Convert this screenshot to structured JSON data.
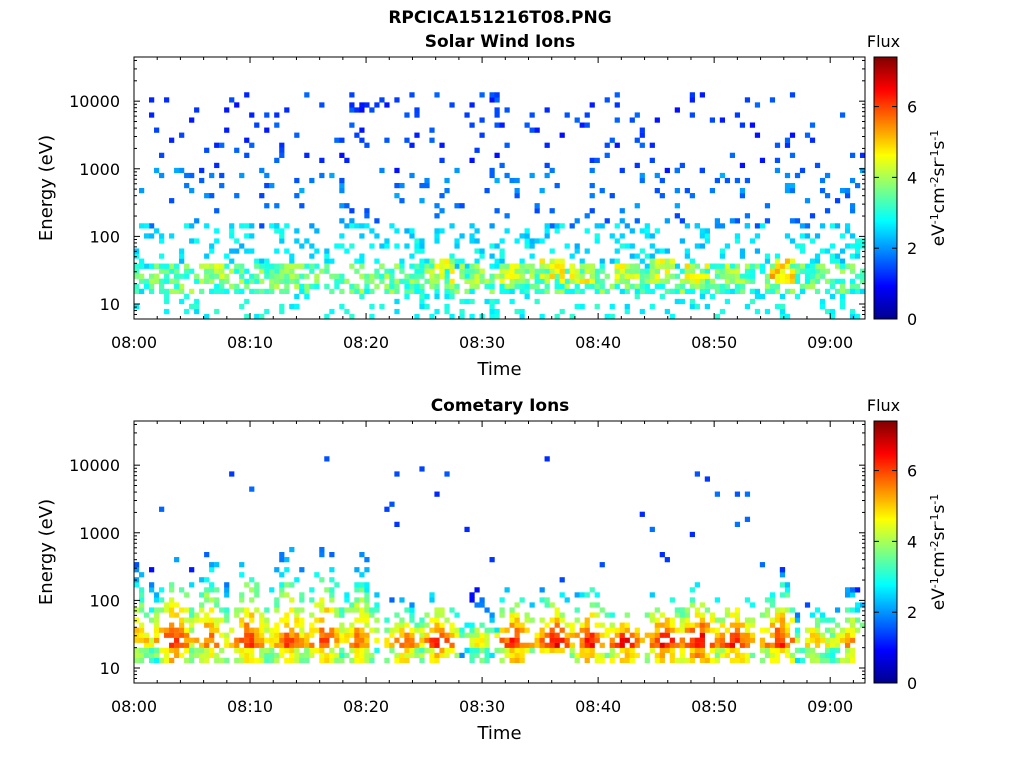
{
  "figure": {
    "title": "RPCICA151216T08.PNG",
    "colors": {
      "colormap": [
        "#00008f",
        "#0000ff",
        "#0080ff",
        "#00ffff",
        "#80ff80",
        "#ffff00",
        "#ff8000",
        "#ff0000",
        "#800000"
      ],
      "axis": "#000000",
      "background": "#ffffff"
    }
  },
  "chart_data": [
    {
      "type": "heatmap",
      "title": "Solar Wind Ions",
      "xlabel": "Time",
      "ylabel": "Energy (eV)",
      "x_range": [
        "08:00",
        "09:03"
      ],
      "x_ticks": [
        "08:00",
        "08:10",
        "08:20",
        "08:30",
        "08:40",
        "08:50",
        "09:00"
      ],
      "y_scale": "log",
      "y_range": [
        6,
        45000
      ],
      "y_ticks": [
        "10",
        "100",
        "1000",
        "10000"
      ],
      "grid": false,
      "colorbar": {
        "label": "Flux",
        "unit": "eV-1cm-2sr-1s-1",
        "range": [
          0,
          7.4
        ],
        "ticks": [
          "0",
          "2",
          "4",
          "6"
        ],
        "colormap": "jet"
      },
      "bands": [
        {
          "energy_range": [
            1000,
            12000
          ],
          "flux_range": [
            1.0,
            1.7
          ],
          "density": 0.07,
          "note": "sparse scattered counts"
        },
        {
          "energy_range": [
            150,
            1000
          ],
          "flux_range": [
            1.4,
            2.2
          ],
          "density": 0.09,
          "note": "sparse scattered counts"
        },
        {
          "energy_range": [
            35,
            150
          ],
          "flux_range": [
            2.2,
            3.0
          ],
          "density": 0.22
        },
        {
          "energy_range": [
            15,
            35
          ],
          "flux_range": [
            2.8,
            4.2
          ],
          "density": 0.55
        },
        {
          "energy_range": [
            6,
            15
          ],
          "flux_range": [
            2.5,
            3.2
          ],
          "density": 0.2
        }
      ],
      "bursts": [
        {
          "time_min": 3,
          "energy_range": [
            22,
            35
          ],
          "flux": 4.0
        },
        {
          "time_min": 6.7,
          "energy_range": [
            22,
            35
          ],
          "flux": 4.5
        },
        {
          "time_min": 12.7,
          "energy_range": [
            22,
            35
          ],
          "flux": 4.2
        },
        {
          "time_min": 26.4,
          "energy_range": [
            22,
            40
          ],
          "flux": 4.8
        },
        {
          "time_min": 29.3,
          "energy_range": [
            22,
            35
          ],
          "flux": 4.5
        },
        {
          "time_min": 32.7,
          "energy_range": [
            22,
            35
          ],
          "flux": 4.8
        },
        {
          "time_min": 35.9,
          "energy_range": [
            22,
            40
          ],
          "flux": 5.0
        },
        {
          "time_min": 38.6,
          "energy_range": [
            22,
            35
          ],
          "flux": 5.0
        },
        {
          "time_min": 42.5,
          "energy_range": [
            22,
            35
          ],
          "flux": 4.8
        },
        {
          "time_min": 45.7,
          "energy_range": [
            22,
            40
          ],
          "flux": 4.8
        },
        {
          "time_min": 48.6,
          "energy_range": [
            22,
            35
          ],
          "flux": 5.0
        },
        {
          "time_min": 51.5,
          "energy_range": [
            22,
            35
          ],
          "flux": 4.5
        },
        {
          "time_min": 55.8,
          "energy_range": [
            22,
            40
          ],
          "flux": 5.6
        },
        {
          "time_min": 58.2,
          "energy_range": [
            22,
            30
          ],
          "flux": 3.8
        }
      ]
    },
    {
      "type": "heatmap",
      "title": "Cometary Ions",
      "xlabel": "Time",
      "ylabel": "Energy (eV)",
      "x_range": [
        "08:00",
        "09:03"
      ],
      "x_ticks": [
        "08:00",
        "08:10",
        "08:20",
        "08:30",
        "08:40",
        "08:50",
        "09:00"
      ],
      "y_scale": "log",
      "y_range": [
        6,
        45000
      ],
      "y_ticks": [
        "10",
        "100",
        "1000",
        "10000"
      ],
      "grid": false,
      "colorbar": {
        "label": "Flux",
        "unit": "eV-1cm-2sr-1s-1",
        "range": [
          0,
          7.4
        ],
        "ticks": [
          "0",
          "2",
          "4",
          "6"
        ],
        "colormap": "jet"
      },
      "bursts": [
        {
          "time_min": 0.3,
          "energy_top": 500,
          "energy_low": 12,
          "peak_flux": 5.8
        },
        {
          "time_min": 3.3,
          "energy_top": 500,
          "energy_low": 12,
          "peak_flux": 6.8
        },
        {
          "time_min": 6.4,
          "energy_top": 550,
          "energy_low": 12,
          "peak_flux": 6.3
        },
        {
          "time_min": 9.6,
          "energy_top": 600,
          "energy_low": 12,
          "peak_flux": 6.6
        },
        {
          "time_min": 13.0,
          "energy_top": 650,
          "energy_low": 12,
          "peak_flux": 6.4
        },
        {
          "time_min": 16.2,
          "energy_top": 600,
          "energy_low": 12,
          "peak_flux": 6.6
        },
        {
          "time_min": 19.0,
          "energy_top": 600,
          "energy_low": 12,
          "peak_flux": 6.2
        },
        {
          "time_min": 23.0,
          "energy_top": 130,
          "energy_low": 12,
          "peak_flux": 6.4
        },
        {
          "time_min": 26.2,
          "energy_top": 150,
          "energy_low": 12,
          "peak_flux": 6.8
        },
        {
          "time_min": 29.6,
          "energy_top": 150,
          "energy_low": 12,
          "peak_flux": 5.2
        },
        {
          "time_min": 32.7,
          "energy_top": 160,
          "energy_low": 12,
          "peak_flux": 6.8
        },
        {
          "time_min": 35.9,
          "energy_top": 160,
          "energy_low": 18,
          "peak_flux": 7.0
        },
        {
          "time_min": 38.9,
          "energy_top": 200,
          "energy_low": 12,
          "peak_flux": 6.8
        },
        {
          "time_min": 42.2,
          "energy_top": 100,
          "energy_low": 12,
          "peak_flux": 6.9
        },
        {
          "time_min": 45.7,
          "energy_top": 160,
          "energy_low": 12,
          "peak_flux": 7.0
        },
        {
          "time_min": 48.6,
          "energy_top": 160,
          "energy_low": 12,
          "peak_flux": 7.2
        },
        {
          "time_min": 51.6,
          "energy_top": 200,
          "energy_low": 12,
          "peak_flux": 6.8
        },
        {
          "time_min": 55.3,
          "energy_top": 300,
          "energy_low": 12,
          "peak_flux": 6.7
        },
        {
          "time_min": 58.5,
          "energy_top": 120,
          "energy_low": 12,
          "peak_flux": 5.8
        },
        {
          "time_min": 61.5,
          "energy_top": 160,
          "energy_low": 12,
          "peak_flux": 6.0
        }
      ],
      "scatter": [
        {
          "time_min": 2.5,
          "energy": 2200
        },
        {
          "time_min": 8.3,
          "energy": 7800
        },
        {
          "time_min": 10.0,
          "energy": 4200
        },
        {
          "time_min": 16.6,
          "energy": 11800
        },
        {
          "time_min": 21.6,
          "energy": 2200
        },
        {
          "time_min": 22.2,
          "energy": 2700
        },
        {
          "time_min": 22.6,
          "energy": 1400
        },
        {
          "time_min": 22.8,
          "energy": 7800
        },
        {
          "time_min": 24.8,
          "energy": 8500
        },
        {
          "time_min": 26.2,
          "energy": 3500
        },
        {
          "time_min": 27.0,
          "energy": 7800
        },
        {
          "time_min": 28.9,
          "energy": 1100
        },
        {
          "time_min": 35.5,
          "energy": 12500
        },
        {
          "time_min": 43.6,
          "energy": 1900
        },
        {
          "time_min": 44.6,
          "energy": 1100
        },
        {
          "time_min": 48.0,
          "energy": 1000
        },
        {
          "time_min": 48.7,
          "energy": 7800
        },
        {
          "time_min": 49.4,
          "energy": 6800
        },
        {
          "time_min": 50.4,
          "energy": 4000
        },
        {
          "time_min": 52.0,
          "energy": 3700
        },
        {
          "time_min": 52.7,
          "energy": 3700
        },
        {
          "time_min": 52.2,
          "energy": 1300
        },
        {
          "time_min": 52.9,
          "energy": 1500
        },
        {
          "time_min": 45.4,
          "energy": 500
        },
        {
          "time_min": 45.8,
          "energy": 380
        },
        {
          "time_min": 54.0,
          "energy": 330
        },
        {
          "time_min": 55.8,
          "energy": 280
        },
        {
          "time_min": 31.0,
          "energy": 380
        },
        {
          "time_min": 40.5,
          "energy": 320
        },
        {
          "time_min": 37.0,
          "energy": 200
        }
      ]
    }
  ]
}
